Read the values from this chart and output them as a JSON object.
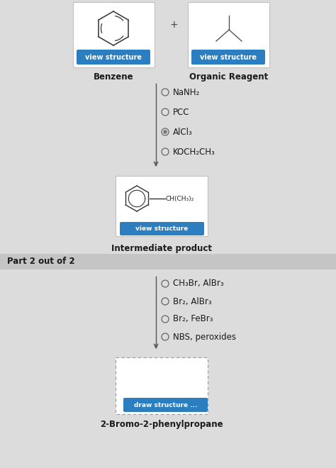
{
  "bg_color": "#dcdcdc",
  "white": "#ffffff",
  "blue_btn": "#2b7fc1",
  "text_color": "#1a1a1a",
  "part2_bg": "#c8c8c8",
  "part1": {
    "benzene_label": "Benzene",
    "organic_label": "Organic Reagent",
    "plus": "+",
    "reagents": [
      "NaNH₂",
      "PCC",
      "AlCl₃",
      "KOCH₂CH₃"
    ],
    "selected_reagent": 2,
    "intermediate_label": "Intermediate product",
    "view_structure": "view structure",
    "intermediate_text": "CH(CH₃)₂"
  },
  "part2": {
    "header": "Part 2 out of 2",
    "reagents": [
      "CH₃Br, AlBr₃",
      "Br₂, AlBr₃",
      "Br₂, FeBr₃",
      "NBS, peroxides"
    ],
    "selected_reagent": -1,
    "draw_label": "draw structure ...",
    "product_label": "2-Bromo-2-phenylpropane"
  }
}
